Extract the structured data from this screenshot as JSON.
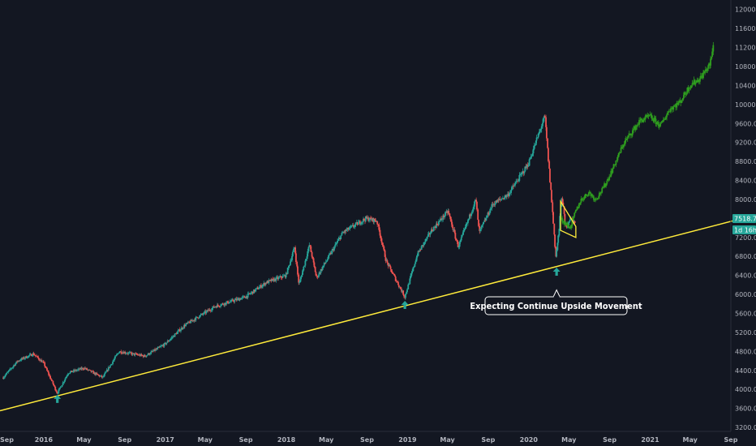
{
  "chart_data": {
    "type": "line",
    "x_range": [
      "2015-09",
      "2021-09"
    ],
    "ylim": [
      3150,
      12200
    ],
    "y_scale": "linear",
    "grid": false,
    "x_ticks": [
      "Sep",
      "2016",
      "May",
      "Sep",
      "2017",
      "May",
      "Sep",
      "2018",
      "May",
      "Sep",
      "2019",
      "May",
      "Sep",
      "2020",
      "May",
      "Sep",
      "2021",
      "May",
      "Sep"
    ],
    "y_ticks": [
      "12000.0",
      "11600.0",
      "11200.0",
      "10800.0",
      "10400.0",
      "10000.0",
      "9600.0",
      "9200.0",
      "8800.0",
      "8400.0",
      "8000.0",
      "7600.0",
      "7200.0",
      "6800.0",
      "6400.0",
      "6000.0",
      "5600.0",
      "5200.0",
      "4800.0",
      "4400.0",
      "4000.0",
      "3600.0",
      "3200.0"
    ],
    "price_badge": "7518.7",
    "countdown_badge": "1d 16h",
    "colors": {
      "up": "#26a69a",
      "down": "#ef5350",
      "projection": "#2f9e1f",
      "trendline": "#ffeb3b",
      "arrow": "#26a69a",
      "background": "#131722"
    },
    "series": [
      {
        "kind": "candles",
        "points": [
          [
            "2015-09-01",
            4250
          ],
          [
            "2015-10-15",
            4600
          ],
          [
            "2015-12-01",
            4750
          ],
          [
            "2016-01-01",
            4550
          ],
          [
            "2016-02-11",
            3920
          ],
          [
            "2016-03-15",
            4350
          ],
          [
            "2016-05-01",
            4450
          ],
          [
            "2016-06-27",
            4250
          ],
          [
            "2016-08-15",
            4800
          ],
          [
            "2016-11-01",
            4700
          ],
          [
            "2016-12-31",
            4950
          ],
          [
            "2017-03-01",
            5350
          ],
          [
            "2017-06-01",
            5750
          ],
          [
            "2017-09-01",
            5950
          ],
          [
            "2017-11-01",
            6250
          ],
          [
            "2017-12-31",
            6400
          ],
          [
            "2018-01-26",
            7000
          ],
          [
            "2018-02-08",
            6200
          ],
          [
            "2018-03-12",
            7050
          ],
          [
            "2018-04-02",
            6350
          ],
          [
            "2018-06-20",
            7300
          ],
          [
            "2018-08-29",
            7600
          ],
          [
            "2018-10-01",
            7550
          ],
          [
            "2018-10-29",
            6700
          ],
          [
            "2018-12-24",
            5950
          ],
          [
            "2019-01-31",
            6850
          ],
          [
            "2019-03-15",
            7350
          ],
          [
            "2019-05-03",
            7750
          ],
          [
            "2019-06-03",
            7000
          ],
          [
            "2019-07-26",
            8000
          ],
          [
            "2019-08-05",
            7300
          ],
          [
            "2019-09-15",
            7900
          ],
          [
            "2019-10-31",
            8100
          ],
          [
            "2019-12-31",
            8750
          ],
          [
            "2020-02-19",
            9750
          ],
          [
            "2020-03-10",
            8000
          ],
          [
            "2020-03-23",
            6800
          ],
          [
            "2020-04-01",
            7300
          ],
          [
            "2020-04-10",
            8100
          ],
          [
            "2020-04-21",
            7400
          ],
          [
            "2020-05-05",
            7600
          ],
          [
            "2020-05-21",
            7500
          ]
        ]
      },
      {
        "kind": "projection",
        "points": [
          [
            "2020-04-06",
            7600
          ],
          [
            "2020-04-20",
            7500
          ],
          [
            "2020-05-05",
            7400
          ],
          [
            "2020-05-22",
            7750
          ],
          [
            "2020-06-08",
            8000
          ],
          [
            "2020-07-01",
            8150
          ],
          [
            "2020-07-20",
            8000
          ],
          [
            "2020-08-10",
            8200
          ],
          [
            "2020-09-01",
            8500
          ],
          [
            "2020-09-20",
            8800
          ],
          [
            "2020-10-15",
            9200
          ],
          [
            "2020-11-05",
            9400
          ],
          [
            "2020-12-01",
            9650
          ],
          [
            "2020-12-31",
            9750
          ],
          [
            "2021-02-01",
            9550
          ],
          [
            "2021-03-01",
            9900
          ],
          [
            "2021-04-01",
            10050
          ],
          [
            "2021-05-01",
            10400
          ],
          [
            "2021-06-01",
            10550
          ],
          [
            "2021-07-01",
            10850
          ],
          [
            "2021-07-12",
            11300
          ]
        ]
      }
    ],
    "trendline": [
      [
        "2015-09-01",
        3550
      ],
      [
        "2021-09-30",
        7600
      ]
    ],
    "triangle": [
      [
        "2020-04-06",
        7960
      ],
      [
        "2020-05-22",
        7430
      ],
      [
        "2020-05-22",
        7200
      ],
      [
        "2020-04-06",
        7350
      ]
    ],
    "arrows": [
      [
        "2016-02-11",
        3800
      ],
      [
        "2018-12-24",
        5780
      ],
      [
        "2020-03-25",
        6480
      ]
    ],
    "annotations": [
      {
        "text": "Expecting Continue Upside Movement",
        "x": "2020-03-25",
        "y": 6300
      }
    ]
  }
}
